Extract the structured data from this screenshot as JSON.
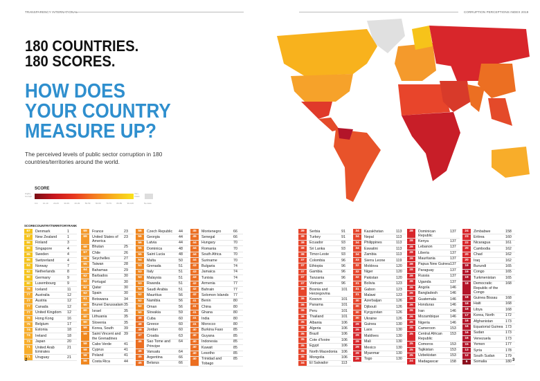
{
  "header": {
    "left": "TRANSPARENCY INTERNATIONAL",
    "right": "CORRUPTION PERCEPTIONS INDEX 2019"
  },
  "title": {
    "line1": "180 COUNTRIES.",
    "line2": "180 SCORES.",
    "line3": "HOW DOES",
    "line4": "YOUR COUNTRY",
    "line5": "MEASURE UP?"
  },
  "intro": "The perceived levels of public sector corruption in 180 countries/territories around the world.",
  "legend": {
    "title": "SCORE",
    "low": "Highly Corrupt",
    "high": "Very Clean",
    "no_data": "No data",
    "ticks": [
      "0-9",
      "10-19",
      "20-29",
      "30-39",
      "40-49",
      "50-59",
      "60-69",
      "70-79",
      "80-89",
      "90-100"
    ]
  },
  "table_headers": {
    "score": "SCORE",
    "country": "COUNTRY/TERRITORY",
    "rank": "RANK"
  },
  "colors": {
    "accent_blue": "#2f8fce",
    "s80": "#f6c31a",
    "s70": "#f8ad2a",
    "s60": "#f49a2c",
    "s50": "#f0871f",
    "s40": "#ec6f22",
    "s30": "#e6452b",
    "s20": "#d8262b",
    "s10": "#b3152a",
    "s0": "#8c0f1e"
  },
  "columns": [
    [
      [
        87,
        "Denmark",
        1
      ],
      [
        87,
        "New Zealand",
        1
      ],
      [
        86,
        "Finland",
        3
      ],
      [
        85,
        "Singapore",
        4
      ],
      [
        85,
        "Sweden",
        4
      ],
      [
        85,
        "Switzerland",
        4
      ],
      [
        84,
        "Norway",
        7
      ],
      [
        82,
        "Netherlands",
        8
      ],
      [
        80,
        "Germany",
        9
      ],
      [
        80,
        "Luxembourg",
        9
      ],
      [
        78,
        "Iceland",
        11
      ],
      [
        77,
        "Australia",
        12
      ],
      [
        77,
        "Austria",
        12
      ],
      [
        77,
        "Canada",
        12
      ],
      [
        77,
        "United Kingdom",
        12
      ],
      [
        76,
        "Hong Kong",
        16
      ],
      [
        75,
        "Belgium",
        17
      ],
      [
        74,
        "Estonia",
        18
      ],
      [
        74,
        "Ireland",
        18
      ],
      [
        73,
        "Japan",
        20
      ],
      [
        71,
        "United Arab Emirates",
        21
      ],
      [
        71,
        "Uruguay",
        21
      ]
    ],
    [
      [
        69,
        "France",
        23
      ],
      [
        69,
        "United States of America",
        23
      ],
      [
        68,
        "Bhutan",
        25
      ],
      [
        67,
        "Chile",
        26
      ],
      [
        66,
        "Seychelles",
        27
      ],
      [
        65,
        "Taiwan",
        28
      ],
      [
        64,
        "Bahamas",
        29
      ],
      [
        62,
        "Barbados",
        30
      ],
      [
        62,
        "Portugal",
        30
      ],
      [
        62,
        "Qatar",
        30
      ],
      [
        62,
        "Spain",
        30
      ],
      [
        61,
        "Botswana",
        34
      ],
      [
        60,
        "Brunei Darussalam",
        35
      ],
      [
        60,
        "Israel",
        35
      ],
      [
        60,
        "Lithuania",
        35
      ],
      [
        60,
        "Slovenia",
        35
      ],
      [
        59,
        "Korea, South",
        39
      ],
      [
        59,
        "Saint Vincent and the Grenadines",
        39
      ],
      [
        58,
        "Cabo Verde",
        41
      ],
      [
        58,
        "Cyprus",
        41
      ],
      [
        58,
        "Poland",
        41
      ],
      [
        56,
        "Costa Rica",
        44
      ]
    ],
    [
      [
        56,
        "Czech Republic",
        44
      ],
      [
        56,
        "Georgia",
        44
      ],
      [
        56,
        "Latvia",
        44
      ],
      [
        55,
        "Dominica",
        48
      ],
      [
        55,
        "Saint Lucia",
        48
      ],
      [
        54,
        "Malta",
        50
      ],
      [
        53,
        "Grenada",
        51
      ],
      [
        53,
        "Italy",
        51
      ],
      [
        53,
        "Malaysia",
        51
      ],
      [
        53,
        "Rwanda",
        51
      ],
      [
        53,
        "Saudi Arabia",
        51
      ],
      [
        52,
        "Mauritius",
        56
      ],
      [
        52,
        "Namibia",
        56
      ],
      [
        52,
        "Oman",
        56
      ],
      [
        50,
        "Slovakia",
        59
      ],
      [
        48,
        "Cuba",
        60
      ],
      [
        48,
        "Greece",
        60
      ],
      [
        48,
        "Jordan",
        60
      ],
      [
        47,
        "Croatia",
        63
      ],
      [
        46,
        "Sao Tome and Principe",
        64
      ],
      [
        46,
        "Vanuatu",
        64
      ],
      [
        45,
        "Argentina",
        66
      ],
      [
        45,
        "Belarus",
        66
      ]
    ],
    [
      [
        45,
        "Montenegro",
        66
      ],
      [
        45,
        "Senegal",
        66
      ],
      [
        44,
        "Hungary",
        70
      ],
      [
        44,
        "Romania",
        70
      ],
      [
        44,
        "South Africa",
        70
      ],
      [
        44,
        "Suriname",
        70
      ],
      [
        43,
        "Bulgaria",
        74
      ],
      [
        43,
        "Jamaica",
        74
      ],
      [
        43,
        "Tunisia",
        74
      ],
      [
        42,
        "Armenia",
        77
      ],
      [
        42,
        "Bahrain",
        77
      ],
      [
        42,
        "Solomon Islands",
        77
      ],
      [
        41,
        "Benin",
        80
      ],
      [
        41,
        "China",
        80
      ],
      [
        41,
        "Ghana",
        80
      ],
      [
        41,
        "India",
        80
      ],
      [
        41,
        "Morocco",
        80
      ],
      [
        40,
        "Burkina Faso",
        85
      ],
      [
        40,
        "Guyana",
        85
      ],
      [
        40,
        "Indonesia",
        85
      ],
      [
        40,
        "Kuwait",
        85
      ],
      [
        40,
        "Lesotho",
        85
      ],
      [
        40,
        "Trinidad and Tobago",
        85
      ]
    ],
    [
      [
        39,
        "Serbia",
        91
      ],
      [
        39,
        "Turkey",
        91
      ],
      [
        38,
        "Ecuador",
        93
      ],
      [
        38,
        "Sri Lanka",
        93
      ],
      [
        38,
        "Timor-Leste",
        93
      ],
      [
        37,
        "Colombia",
        96
      ],
      [
        37,
        "Ethiopia",
        96
      ],
      [
        37,
        "Gambia",
        96
      ],
      [
        37,
        "Tanzania",
        96
      ],
      [
        37,
        "Vietnam",
        96
      ],
      [
        36,
        "Bosnia and Herzegovina",
        101
      ],
      [
        36,
        "Kosovo",
        101
      ],
      [
        36,
        "Panama",
        101
      ],
      [
        36,
        "Peru",
        101
      ],
      [
        36,
        "Thailand",
        101
      ],
      [
        35,
        "Albania",
        106
      ],
      [
        35,
        "Algeria",
        106
      ],
      [
        35,
        "Brazil",
        106
      ],
      [
        35,
        "Cote d'Ivoire",
        106
      ],
      [
        35,
        "Egypt",
        106
      ],
      [
        35,
        "North Macedonia",
        106
      ],
      [
        35,
        "Mongolia",
        106
      ],
      [
        34,
        "El Salvador",
        113
      ]
    ],
    [
      [
        34,
        "Kazakhstan",
        113
      ],
      [
        34,
        "Nepal",
        113
      ],
      [
        34,
        "Philippines",
        113
      ],
      [
        34,
        "Eswatini",
        113
      ],
      [
        34,
        "Zambia",
        113
      ],
      [
        33,
        "Sierra Leone",
        119
      ],
      [
        32,
        "Moldova",
        120
      ],
      [
        32,
        "Niger",
        120
      ],
      [
        32,
        "Pakistan",
        120
      ],
      [
        31,
        "Bolivia",
        123
      ],
      [
        31,
        "Gabon",
        123
      ],
      [
        31,
        "Malawi",
        123
      ],
      [
        30,
        "Azerbaijan",
        126
      ],
      [
        30,
        "Djibouti",
        126
      ],
      [
        30,
        "Kyrgyzstan",
        126
      ],
      [
        30,
        "Ukraine",
        126
      ],
      [
        29,
        "Guinea",
        130
      ],
      [
        29,
        "Laos",
        130
      ],
      [
        29,
        "Maldives",
        130
      ],
      [
        29,
        "Mali",
        130
      ],
      [
        29,
        "Mexico",
        130
      ],
      [
        29,
        "Myanmar",
        130
      ],
      [
        29,
        "Togo",
        130
      ]
    ],
    [
      [
        28,
        "Dominican Republic",
        137
      ],
      [
        28,
        "Kenya",
        137
      ],
      [
        28,
        "Lebanon",
        137
      ],
      [
        28,
        "Liberia",
        137
      ],
      [
        28,
        "Mauritania",
        137
      ],
      [
        28,
        "Papua New Guinea",
        137
      ],
      [
        28,
        "Paraguay",
        137
      ],
      [
        28,
        "Russia",
        137
      ],
      [
        28,
        "Uganda",
        137
      ],
      [
        26,
        "Angola",
        146
      ],
      [
        26,
        "Bangladesh",
        146
      ],
      [
        26,
        "Guatemala",
        146
      ],
      [
        26,
        "Honduras",
        146
      ],
      [
        26,
        "Iran",
        146
      ],
      [
        26,
        "Mozambique",
        146
      ],
      [
        26,
        "Nigeria",
        146
      ],
      [
        25,
        "Cameroon",
        153
      ],
      [
        25,
        "Central African Republic",
        153
      ],
      [
        25,
        "Comoros",
        153
      ],
      [
        25,
        "Tajikistan",
        153
      ],
      [
        25,
        "Uzbekistan",
        153
      ],
      [
        24,
        "Madagascar",
        158
      ]
    ],
    [
      [
        24,
        "Zimbabwe",
        158
      ],
      [
        23,
        "Eritrea",
        160
      ],
      [
        22,
        "Nicaragua",
        161
      ],
      [
        20,
        "Cambodia",
        162
      ],
      [
        20,
        "Chad",
        162
      ],
      [
        20,
        "Iraq",
        162
      ],
      [
        19,
        "Burundi",
        165
      ],
      [
        19,
        "Congo",
        165
      ],
      [
        19,
        "Turkmenistan",
        165
      ],
      [
        18,
        "Democratic Republic of the Congo",
        168
      ],
      [
        18,
        "Guinea Bissau",
        168
      ],
      [
        18,
        "Haiti",
        168
      ],
      [
        18,
        "Libya",
        168
      ],
      [
        17,
        "Korea, North",
        172
      ],
      [
        16,
        "Afghanistan",
        173
      ],
      [
        16,
        "Equatorial Guinea",
        173
      ],
      [
        16,
        "Sudan",
        173
      ],
      [
        16,
        "Venezuela",
        173
      ],
      [
        15,
        "Yemen",
        177
      ],
      [
        13,
        "Syria",
        178
      ],
      [
        12,
        "South Sudan",
        179
      ],
      [
        9,
        "Somalia",
        180
      ]
    ]
  ],
  "page_numbers": {
    "left": "2",
    "right": "3"
  }
}
